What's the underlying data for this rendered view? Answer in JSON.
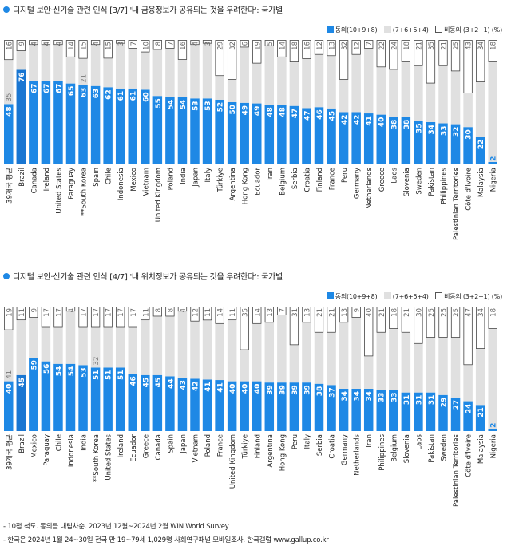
{
  "legend": {
    "agree": "동의(10+9+8)",
    "mid": "(7+6+5+4)",
    "disagree": "비동의 (3+2+1) (%)"
  },
  "colors": {
    "agree": "#1e88e5",
    "mid": "#e0e0e0",
    "disagree_border": "#555555",
    "brazil": "#1976d2"
  },
  "chart_data": [
    {
      "type": "bar",
      "stacked": true,
      "title": "디지털 보안·신기술 관련 인식 [3/7] '내 금융정보가 공유되는 것을 우려한다': 국가별",
      "categories": [
        "39개국 평균",
        "Brazil",
        "Canada",
        "Ireland",
        "United States",
        "Paraguay",
        "**South Korea",
        "Spain",
        "Chile",
        "Indonesia",
        "Mexico",
        "Vietnam",
        "United Kingdom",
        "Poland",
        "India",
        "Japan",
        "Italy",
        "Türkiye",
        "Argentina",
        "Hong Kong",
        "Ecuador",
        "Iran",
        "Belgium",
        "Serbia",
        "Croatia",
        "Finland",
        "France",
        "Peru",
        "Germany",
        "Netherlands",
        "Greece",
        "Laos",
        "Slovenia",
        "Sweden",
        "Pakistan",
        "Philippines",
        "Palestinian Territories",
        "Côte d'Ivoire",
        "Malaysia",
        "Nigeria"
      ],
      "series": [
        {
          "name": "동의(10+9+8)",
          "values": [
            48,
            76,
            67,
            67,
            67,
            65,
            63,
            63,
            62,
            61,
            61,
            60,
            55,
            54,
            54,
            53,
            53,
            52,
            50,
            49,
            49,
            48,
            48,
            47,
            47,
            46,
            45,
            42,
            42,
            41,
            40,
            38,
            38,
            35,
            34,
            33,
            32,
            30,
            22,
            2
          ]
        },
        {
          "name": "(7+6+5+4)",
          "values": [
            35,
            15,
            29,
            29,
            29,
            21,
            21,
            33,
            23,
            36,
            32,
            30,
            37,
            39,
            30,
            43,
            44,
            19,
            18,
            44,
            32,
            47,
            38,
            35,
            41,
            42,
            42,
            26,
            46,
            52,
            38,
            38,
            44,
            44,
            31,
            46,
            42,
            27,
            44,
            80
          ]
        },
        {
          "name": "비동의 (3+2+1)",
          "values": [
            16,
            9,
            4,
            4,
            4,
            14,
            15,
            4,
            15,
            3,
            7,
            10,
            8,
            7,
            16,
            4,
            3,
            29,
            32,
            6,
            19,
            5,
            14,
            18,
            16,
            12,
            13,
            32,
            12,
            7,
            22,
            24,
            18,
            21,
            35,
            21,
            25,
            43,
            34,
            18
          ]
        }
      ],
      "ylim": [
        0,
        100
      ]
    },
    {
      "type": "bar",
      "stacked": true,
      "title": "디지털 보안·신기술 관련 인식 [4/7] '내 위치정보가 공유되는 것을 우려한다': 국가별",
      "categories": [
        "39개국 평균",
        "Brazil",
        "Mexico",
        "Paraguay",
        "Chile",
        "Indonesia",
        "India",
        "**South Korea",
        "United States",
        "Ireland",
        "Ecuador",
        "Greece",
        "Canada",
        "Spain",
        "Japan",
        "Vietnam",
        "Poland",
        "France",
        "United Kingdom",
        "Türkiye",
        "Finland",
        "Argentina",
        "Hong Kong",
        "Peru",
        "Italy",
        "Serbia",
        "Croatia",
        "Germany",
        "Netherlands",
        "Iran",
        "Philippines",
        "Belgium",
        "Slovenia",
        "Laos",
        "Pakistan",
        "Sweden",
        "Palestinian Territories",
        "Côte d'Ivoire",
        "Malaysia",
        "Nigeria"
      ],
      "series": [
        {
          "name": "동의(10+9+8)",
          "values": [
            40,
            45,
            59,
            56,
            54,
            54,
            53,
            51,
            51,
            51,
            46,
            45,
            45,
            44,
            43,
            42,
            41,
            41,
            40,
            40,
            40,
            39,
            39,
            39,
            39,
            38,
            37,
            34,
            34,
            34,
            33,
            33,
            31,
            31,
            31,
            29,
            27,
            24,
            21,
            2
          ]
        },
        {
          "name": "(7+6+5+4)",
          "values": [
            41,
            44,
            32,
            27,
            29,
            42,
            30,
            32,
            32,
            32,
            37,
            44,
            47,
            48,
            53,
            46,
            47,
            45,
            49,
            25,
            46,
            48,
            54,
            30,
            48,
            41,
            42,
            53,
            57,
            26,
            46,
            49,
            48,
            39,
            44,
            46,
            48,
            29,
            45,
            80
          ]
        },
        {
          "name": "비동의 (3+2+1)",
          "values": [
            19,
            11,
            9,
            17,
            17,
            4,
            17,
            17,
            17,
            17,
            17,
            11,
            8,
            8,
            4,
            12,
            11,
            14,
            11,
            35,
            14,
            13,
            7,
            31,
            13,
            21,
            21,
            13,
            9,
            40,
            21,
            18,
            21,
            30,
            25,
            25,
            25,
            47,
            34,
            18
          ]
        }
      ],
      "ylim": [
        0,
        100
      ]
    }
  ],
  "footnotes": [
    "- 10점 척도. 동의를 내림차순. 2023년 12월~2024년 2월 WIN World Survey",
    "- 한국은 2024년 1월 24~30일 전국 만 19~79세 1,029명 사회연구패널 모바일조사. 한국갤럽 www.gallup.co.kr"
  ]
}
